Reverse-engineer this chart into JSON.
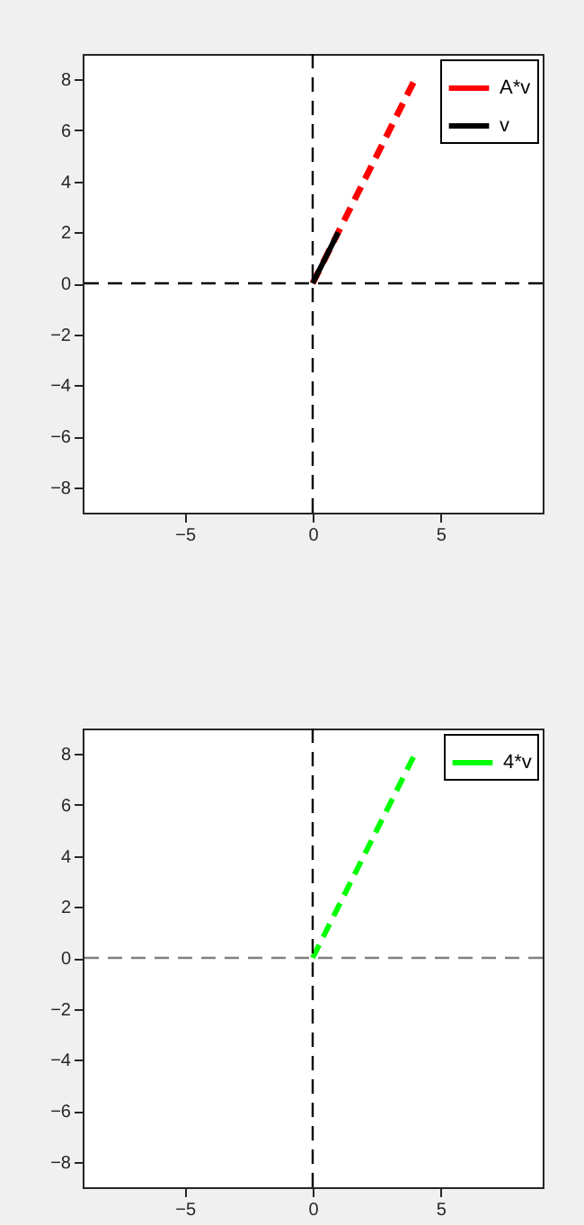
{
  "chart_data": [
    {
      "type": "line",
      "xlim": [
        -9,
        9
      ],
      "ylim": [
        -9,
        9
      ],
      "xticks": [
        -5,
        0,
        5
      ],
      "yticks": [
        -8,
        -6,
        -4,
        -2,
        0,
        2,
        4,
        6,
        8
      ],
      "grid": false,
      "legend": "top right",
      "series": [
        {
          "name": "A*v",
          "color": "#ff0000",
          "line_style": "dashed",
          "x": [
            0,
            4
          ],
          "values": [
            0,
            8
          ]
        },
        {
          "name": "v",
          "color": "#000000",
          "line_style": "solid",
          "x": [
            0,
            1
          ],
          "values": [
            0,
            2
          ]
        }
      ],
      "ref_lines": [
        {
          "axis": "x",
          "value": 0,
          "color": "#000000",
          "line_style": "dashed"
        },
        {
          "axis": "y",
          "value": 0,
          "color": "#000000",
          "line_style": "dashed"
        }
      ]
    },
    {
      "type": "line",
      "xlim": [
        -9,
        9
      ],
      "ylim": [
        -9,
        9
      ],
      "xticks": [
        -5,
        0,
        5
      ],
      "yticks": [
        -8,
        -6,
        -4,
        -2,
        0,
        2,
        4,
        6,
        8
      ],
      "grid": false,
      "legend": "top right",
      "series": [
        {
          "name": "4*v",
          "color": "#00ff00",
          "line_style": "dashed",
          "x": [
            0,
            4
          ],
          "values": [
            0,
            8
          ]
        }
      ],
      "ref_lines": [
        {
          "axis": "x",
          "value": 0,
          "color": "#000000",
          "line_style": "dashed"
        },
        {
          "axis": "y",
          "value": 0,
          "color": "#808080",
          "line_style": "dashed"
        }
      ]
    }
  ]
}
